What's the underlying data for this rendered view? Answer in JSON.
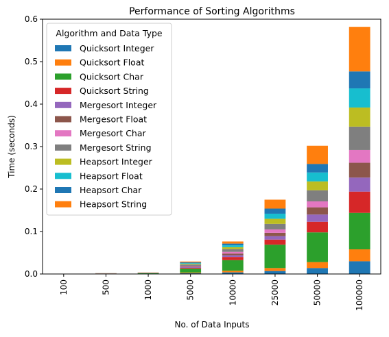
{
  "chart_data": {
    "type": "bar",
    "stacked": true,
    "title": "Performance of Sorting Algorithms",
    "xlabel": "No. of Data Inputs",
    "ylabel": "Time (seconds)",
    "ylim": [
      0,
      0.6
    ],
    "yticks": [
      "0.0",
      "0.1",
      "0.2",
      "0.3",
      "0.4",
      "0.5",
      "0.6"
    ],
    "grid": false,
    "legend_title": "Algorithm and Data Type",
    "legend_placement": "top-left",
    "categories": [
      "100",
      "500",
      "1000",
      "5000",
      "10000",
      "25000",
      "50000",
      "100000"
    ],
    "series": [
      {
        "name": "Quicksort Integer",
        "color": "#1f77b4",
        "values": [
          2e-05,
          0.0002,
          0.0004,
          0.0017,
          0.0038,
          0.007,
          0.014,
          0.03
        ]
      },
      {
        "name": "Quicksort Float",
        "color": "#ff7f0e",
        "values": [
          2e-05,
          0.0002,
          0.0004,
          0.0017,
          0.0038,
          0.007,
          0.014,
          0.028
        ]
      },
      {
        "name": "Quicksort Char",
        "color": "#2ca02c",
        "values": [
          0.0001,
          0.0004,
          0.0008,
          0.009,
          0.025,
          0.055,
          0.07,
          0.086
        ]
      },
      {
        "name": "Quicksort String",
        "color": "#d62728",
        "values": [
          2e-05,
          0.0002,
          0.0002,
          0.002,
          0.0075,
          0.012,
          0.025,
          0.05
        ]
      },
      {
        "name": "Mergesort Integer",
        "color": "#9467bd",
        "values": [
          1e-05,
          0.0001,
          0.0002,
          0.0016,
          0.004,
          0.008,
          0.017,
          0.033
        ]
      },
      {
        "name": "Mergesort Float",
        "color": "#8c564b",
        "values": [
          1e-05,
          0.0001,
          0.0002,
          0.0016,
          0.004,
          0.008,
          0.017,
          0.035
        ]
      },
      {
        "name": "Mergesort Char",
        "color": "#e377c2",
        "values": [
          1e-05,
          0.0001,
          0.0002,
          0.0016,
          0.004,
          0.008,
          0.014,
          0.03
        ]
      },
      {
        "name": "Mergesort String",
        "color": "#7f7f7f",
        "values": [
          2e-05,
          0.0002,
          0.0003,
          0.003,
          0.0065,
          0.013,
          0.026,
          0.055
        ]
      },
      {
        "name": "Heapsort Integer",
        "color": "#bcbd22",
        "values": [
          1e-05,
          0.0001,
          0.0002,
          0.0017,
          0.0045,
          0.012,
          0.021,
          0.045
        ]
      },
      {
        "name": "Heapsort Float",
        "color": "#17becf",
        "values": [
          1e-05,
          0.0001,
          0.0002,
          0.0017,
          0.0045,
          0.012,
          0.021,
          0.045
        ]
      },
      {
        "name": "Heapsort Char",
        "color": "#1f77b4",
        "values": [
          1e-05,
          0.0001,
          0.0002,
          0.0017,
          0.004,
          0.012,
          0.02,
          0.04
        ]
      },
      {
        "name": "Heapsort String",
        "color": "#ff7f0e",
        "values": [
          2e-05,
          0.0002,
          0.0004,
          0.002,
          0.005,
          0.021,
          0.043,
          0.105
        ]
      }
    ]
  }
}
